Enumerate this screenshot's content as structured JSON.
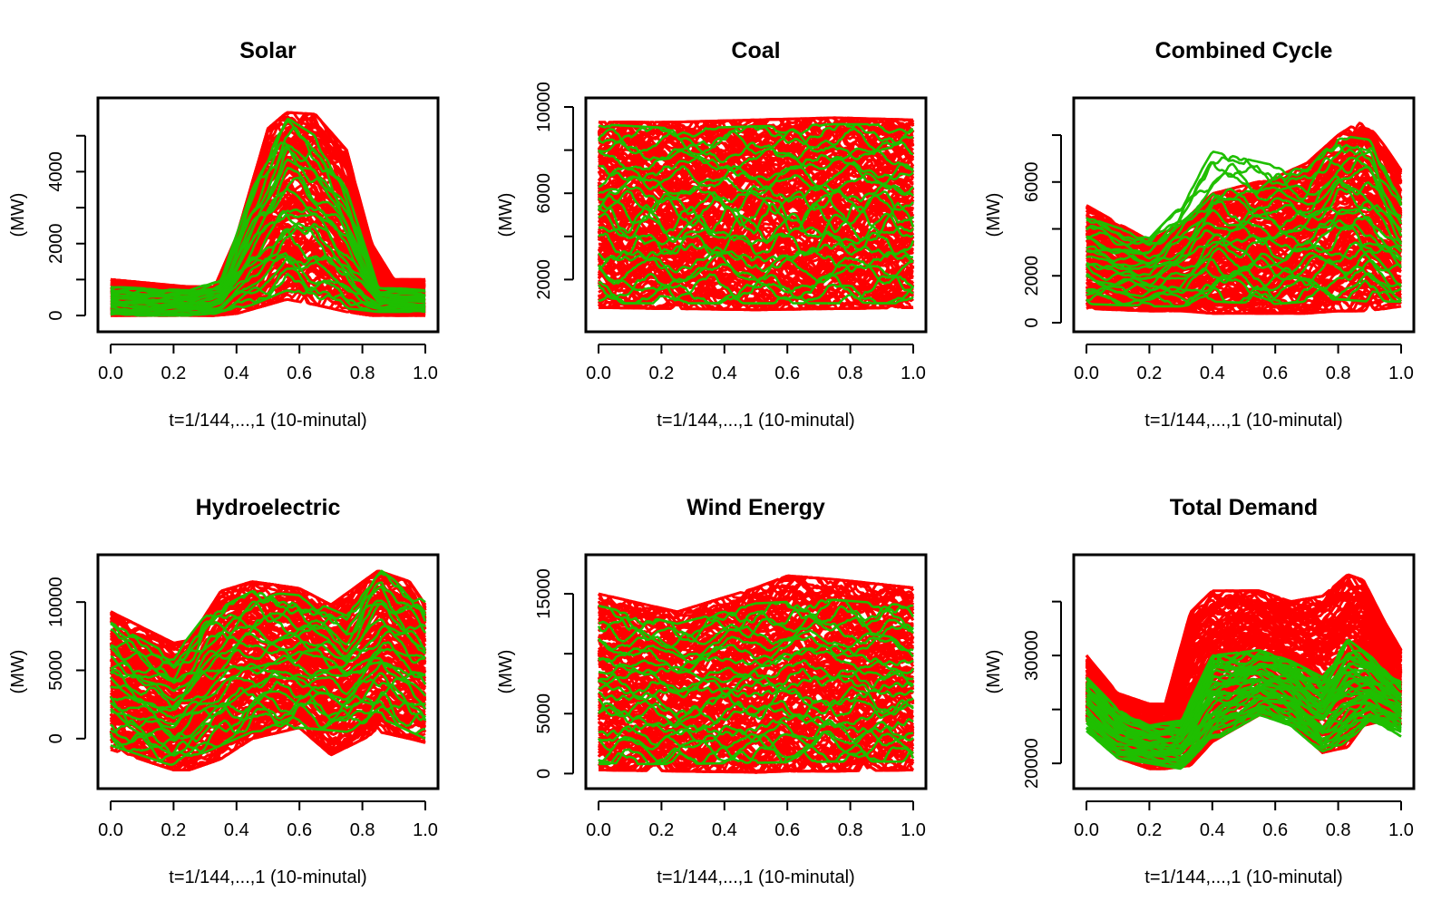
{
  "colors": {
    "background": "#ffffff",
    "frame": "#000000",
    "primary": "#ff0000",
    "secondary": "#1fbf00"
  },
  "chart_data": [
    {
      "type": "line",
      "title": "Solar",
      "xlabel": "t=1/144,...,1 (10-minutal)",
      "ylabel": "(MW)",
      "xlim": [
        0,
        1
      ],
      "ylim": [
        -200,
        5800
      ],
      "xticks": [
        "0.0",
        "0.2",
        "0.4",
        "0.6",
        "0.8",
        "1.0"
      ],
      "yticks": [
        {
          "v": 0,
          "label": "0"
        },
        {
          "v": 1000,
          "label": ""
        },
        {
          "v": 2000,
          "label": "2000"
        },
        {
          "v": 3000,
          "label": ""
        },
        {
          "v": 4000,
          "label": "4000"
        },
        {
          "v": 5000,
          "label": ""
        }
      ],
      "grid": false,
      "series": [
        {
          "color": "#ff0000",
          "n_curves": 110,
          "envelope": {
            "x": [
              0,
              0.25,
              0.33,
              0.4,
              0.5,
              0.56,
              0.65,
              0.75,
              0.83,
              0.9,
              1.0
            ],
            "low": [
              0,
              0,
              0,
              50,
              300,
              450,
              300,
              100,
              0,
              0,
              0
            ],
            "high": [
              1000,
              800,
              800,
              2200,
              5200,
              5650,
              5600,
              4600,
              2000,
              1000,
              1000
            ]
          }
        },
        {
          "color": "#1fbf00",
          "n_curves": 22,
          "envelope": {
            "x": [
              0,
              0.25,
              0.35,
              0.45,
              0.56,
              0.65,
              0.75,
              0.85,
              1.0
            ],
            "low": [
              0,
              0,
              50,
              300,
              700,
              500,
              200,
              100,
              100
            ],
            "high": [
              800,
              700,
              1000,
              3500,
              5500,
              5000,
              3500,
              800,
              700
            ]
          }
        }
      ]
    },
    {
      "type": "line",
      "title": "Coal",
      "xlabel": "t=1/144,...,1 (10-minutal)",
      "ylabel": "(MW)",
      "xlim": [
        0,
        1
      ],
      "ylim": [
        0,
        10000
      ],
      "xticks": [
        "0.0",
        "0.2",
        "0.4",
        "0.6",
        "0.8",
        "1.0"
      ],
      "yticks": [
        {
          "v": 2000,
          "label": "2000"
        },
        {
          "v": 4000,
          "label": ""
        },
        {
          "v": 6000,
          "label": "6000"
        },
        {
          "v": 8000,
          "label": ""
        },
        {
          "v": 10000,
          "label": "10000"
        }
      ],
      "grid": false,
      "series": [
        {
          "color": "#ff0000",
          "n_curves": 130,
          "envelope": {
            "x": [
              0,
              0.25,
              0.5,
              0.75,
              1.0
            ],
            "low": [
              700,
              650,
              600,
              650,
              700
            ],
            "high": [
              9300,
              9300,
              9400,
              9500,
              9400
            ]
          }
        },
        {
          "color": "#1fbf00",
          "n_curves": 22,
          "envelope": {
            "x": [
              0,
              0.25,
              0.5,
              0.75,
              1.0
            ],
            "low": [
              900,
              900,
              900,
              900,
              900
            ],
            "high": [
              9200,
              9000,
              9100,
              9200,
              9200
            ]
          }
        }
      ]
    },
    {
      "type": "line",
      "title": "Combined Cycle",
      "xlabel": "t=1/144,...,1 (10-minutal)",
      "ylabel": "(MW)",
      "xlim": [
        0,
        1
      ],
      "ylim": [
        0,
        9200
      ],
      "xticks": [
        "0.0",
        "0.2",
        "0.4",
        "0.6",
        "0.8",
        "1.0"
      ],
      "yticks": [
        {
          "v": 0,
          "label": "0"
        },
        {
          "v": 2000,
          "label": "2000"
        },
        {
          "v": 4000,
          "label": ""
        },
        {
          "v": 6000,
          "label": "6000"
        },
        {
          "v": 8000,
          "label": ""
        }
      ],
      "grid": false,
      "series": [
        {
          "color": "#ff0000",
          "n_curves": 110,
          "envelope": {
            "x": [
              0,
              0.2,
              0.3,
              0.4,
              0.6,
              0.7,
              0.8,
              0.88,
              0.95,
              1.0
            ],
            "low": [
              600,
              500,
              500,
              400,
              400,
              400,
              500,
              500,
              600,
              700
            ],
            "high": [
              5000,
              3500,
              4200,
              5500,
              6200,
              6800,
              8000,
              8700,
              7500,
              6500
            ]
          }
        },
        {
          "color": "#1fbf00",
          "n_curves": 22,
          "envelope": {
            "x": [
              0,
              0.2,
              0.3,
              0.4,
              0.6,
              0.7,
              0.8,
              0.9,
              1.0
            ],
            "low": [
              800,
              700,
              700,
              900,
              800,
              900,
              1000,
              900,
              900
            ],
            "high": [
              4500,
              3600,
              5000,
              7300,
              6700,
              6500,
              8000,
              7800,
              5200
            ]
          }
        }
      ]
    },
    {
      "type": "line",
      "title": "Hydroelectric",
      "xlabel": "t=1/144,...,1 (10-minutal)",
      "ylabel": "(MW)",
      "xlim": [
        0,
        1
      ],
      "ylim": [
        -3000,
        12800
      ],
      "xticks": [
        "0.0",
        "0.2",
        "0.4",
        "0.6",
        "0.8",
        "1.0"
      ],
      "yticks": [
        {
          "v": 0,
          "label": "0"
        },
        {
          "v": 5000,
          "label": "5000"
        },
        {
          "v": 10000,
          "label": "10000"
        }
      ],
      "grid": false,
      "series": [
        {
          "color": "#ff0000",
          "n_curves": 120,
          "envelope": {
            "x": [
              0,
              0.2,
              0.25,
              0.35,
              0.45,
              0.6,
              0.7,
              0.85,
              0.95,
              1.0
            ],
            "low": [
              -800,
              -2300,
              -2300,
              -1500,
              0,
              800,
              -1200,
              500,
              0,
              -300
            ],
            "high": [
              9300,
              7000,
              7200,
              10800,
              11500,
              11000,
              9800,
              12300,
              11500,
              9800
            ]
          }
        },
        {
          "color": "#1fbf00",
          "n_curves": 22,
          "envelope": {
            "x": [
              0,
              0.2,
              0.3,
              0.45,
              0.6,
              0.75,
              0.86,
              1.0
            ],
            "low": [
              -500,
              -2000,
              -1000,
              500,
              800,
              500,
              1500,
              0
            ],
            "high": [
              8500,
              6000,
              9000,
              10800,
              10500,
              9000,
              12300,
              10000
            ]
          }
        }
      ]
    },
    {
      "type": "line",
      "title": "Wind Energy",
      "xlabel": "t=1/144,...,1 (10-minutal)",
      "ylabel": "(MW)",
      "xlim": [
        0,
        1
      ],
      "ylim": [
        -500,
        17500
      ],
      "xticks": [
        "0.0",
        "0.2",
        "0.4",
        "0.6",
        "0.8",
        "1.0"
      ],
      "yticks": [
        {
          "v": 0,
          "label": "0"
        },
        {
          "v": 5000,
          "label": "5000"
        },
        {
          "v": 10000,
          "label": ""
        },
        {
          "v": 15000,
          "label": "15000"
        }
      ],
      "grid": false,
      "series": [
        {
          "color": "#ff0000",
          "n_curves": 120,
          "envelope": {
            "x": [
              0,
              0.25,
              0.5,
              0.6,
              0.75,
              1.0
            ],
            "low": [
              300,
              200,
              100,
              200,
              200,
              300
            ],
            "high": [
              15000,
              13500,
              15500,
              16500,
              16200,
              15500
            ]
          }
        },
        {
          "color": "#1fbf00",
          "n_curves": 22,
          "envelope": {
            "x": [
              0,
              0.25,
              0.5,
              0.75,
              1.0
            ],
            "low": [
              800,
              800,
              900,
              1000,
              1000
            ],
            "high": [
              14000,
              12500,
              14200,
              14500,
              14000
            ]
          }
        }
      ]
    },
    {
      "type": "line",
      "title": "Total Demand",
      "xlabel": "t=1/144,...,1 (10-minutal)",
      "ylabel": "(MW)",
      "xlim": [
        0,
        1
      ],
      "ylim": [
        18500,
        38500
      ],
      "xticks": [
        "0.0",
        "0.2",
        "0.4",
        "0.6",
        "0.8",
        "1.0"
      ],
      "yticks": [
        {
          "v": 20000,
          "label": "20000"
        },
        {
          "v": 25000,
          "label": ""
        },
        {
          "v": 30000,
          "label": "30000"
        },
        {
          "v": 35000,
          "label": ""
        }
      ],
      "grid": false,
      "series": [
        {
          "color": "#ff0000",
          "n_curves": 120,
          "envelope": {
            "x": [
              0,
              0.1,
              0.2,
              0.25,
              0.33,
              0.4,
              0.55,
              0.65,
              0.75,
              0.83,
              0.88,
              0.95,
              1.0
            ],
            "low": [
              24000,
              20500,
              19500,
              19500,
              19800,
              22000,
              24500,
              23800,
              21000,
              21500,
              23500,
              24000,
              23500
            ],
            "high": [
              30000,
              26500,
              25500,
              25500,
              34000,
              36000,
              36000,
              35000,
              35500,
              37500,
              37000,
              33000,
              30500
            ]
          }
        },
        {
          "color": "#1fbf00",
          "n_curves": 40,
          "envelope": {
            "x": [
              0,
              0.1,
              0.2,
              0.3,
              0.4,
              0.55,
              0.65,
              0.75,
              0.83,
              0.9,
              1.0
            ],
            "low": [
              23000,
              20500,
              20000,
              19500,
              22000,
              24500,
              23500,
              21000,
              22000,
              24000,
              22500
            ],
            "high": [
              28000,
              25000,
              23500,
              24000,
              30000,
              30500,
              29500,
              28000,
              31500,
              30000,
              27500
            ]
          }
        }
      ]
    }
  ]
}
